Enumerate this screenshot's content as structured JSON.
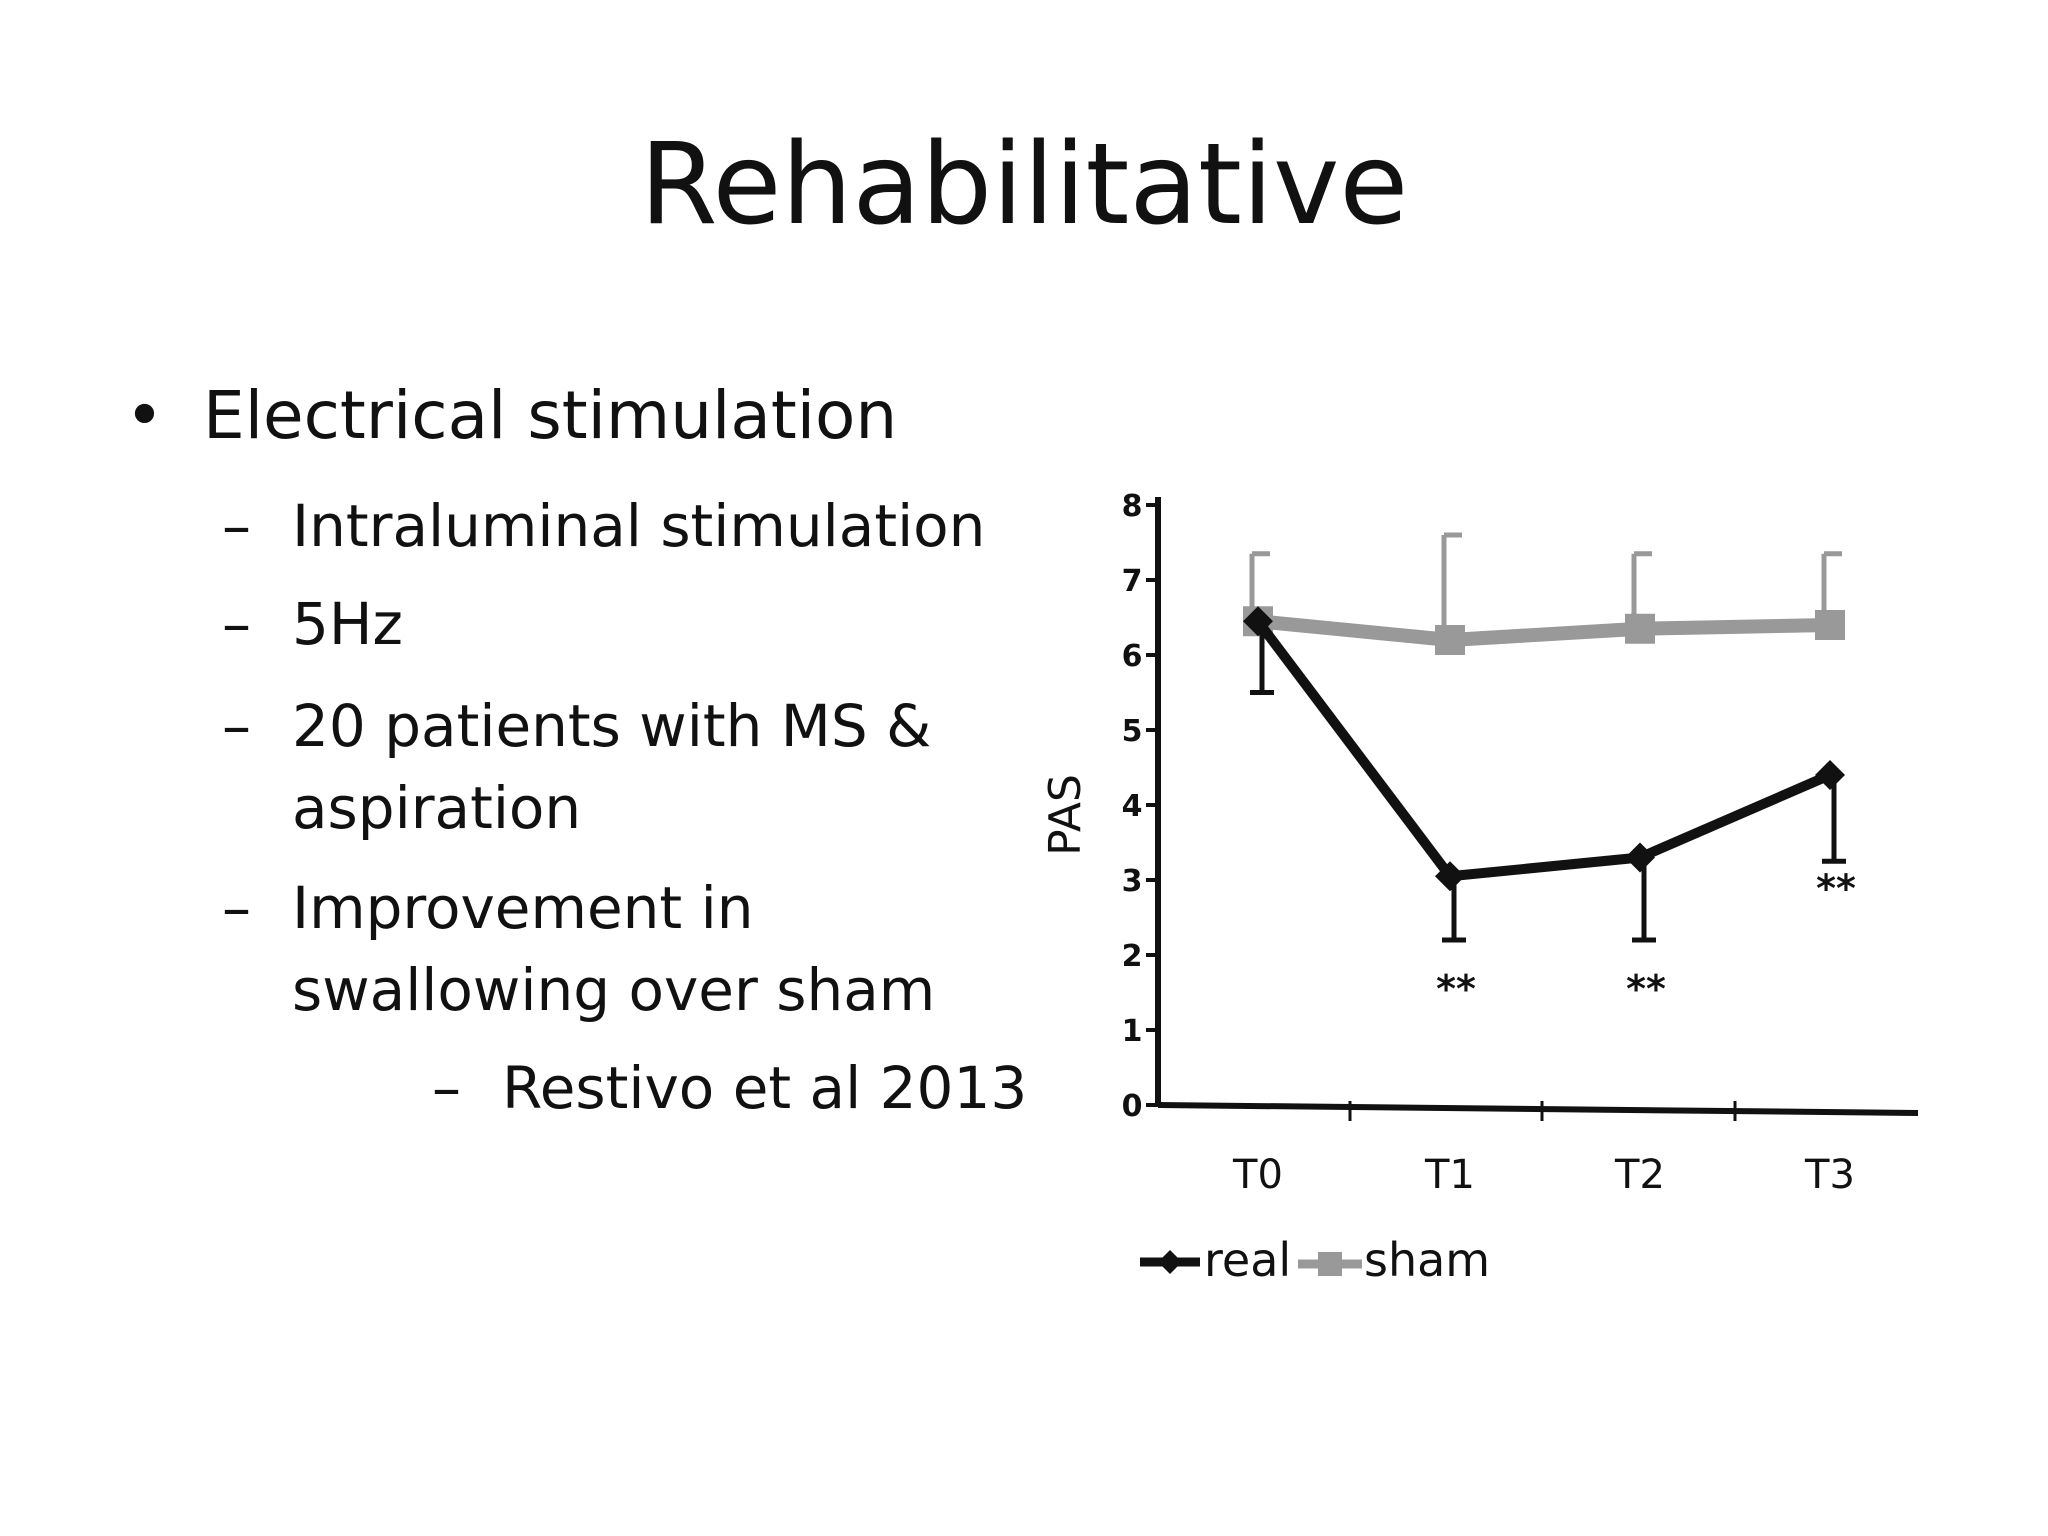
{
  "slide": {
    "title": "Rehabilitative",
    "bullets": [
      {
        "marker": "•",
        "text": "Electrical stimulation"
      },
      {
        "marker": "–",
        "text": "Intraluminal stimulation"
      },
      {
        "marker": "–",
        "text": "5Hz"
      },
      {
        "marker": "–",
        "text": "20 patients with MS &"
      },
      {
        "marker": "",
        "text": "aspiration"
      },
      {
        "marker": "–",
        "text": "Improvement in"
      },
      {
        "marker": "",
        "text": "swallowing over sham"
      },
      {
        "marker": "–",
        "text": "Restivo et al 2013"
      }
    ]
  },
  "chart_data": {
    "type": "line",
    "title": "",
    "xlabel": "",
    "ylabel": "PAS",
    "categories": [
      "T0",
      "T1",
      "T2",
      "T3"
    ],
    "yticks": [
      "0",
      "1",
      "2",
      "3",
      "4",
      "5",
      "6",
      "7",
      "8"
    ],
    "ylim": [
      0,
      8
    ],
    "grid": false,
    "legend": "bottom-left",
    "series": [
      {
        "name": "real",
        "color": "#111111",
        "marker": "diamond",
        "values": [
          6.45,
          3.05,
          3.3,
          4.4
        ],
        "error_low": [
          5.5,
          2.2,
          2.2,
          3.25
        ],
        "significance": [
          "",
          "**",
          "**",
          "**"
        ]
      },
      {
        "name": "sham",
        "color": "#999999",
        "marker": "square",
        "values": [
          6.45,
          6.2,
          6.35,
          6.4
        ],
        "error_high": [
          7.35,
          7.6,
          7.35,
          7.35
        ]
      }
    ]
  }
}
